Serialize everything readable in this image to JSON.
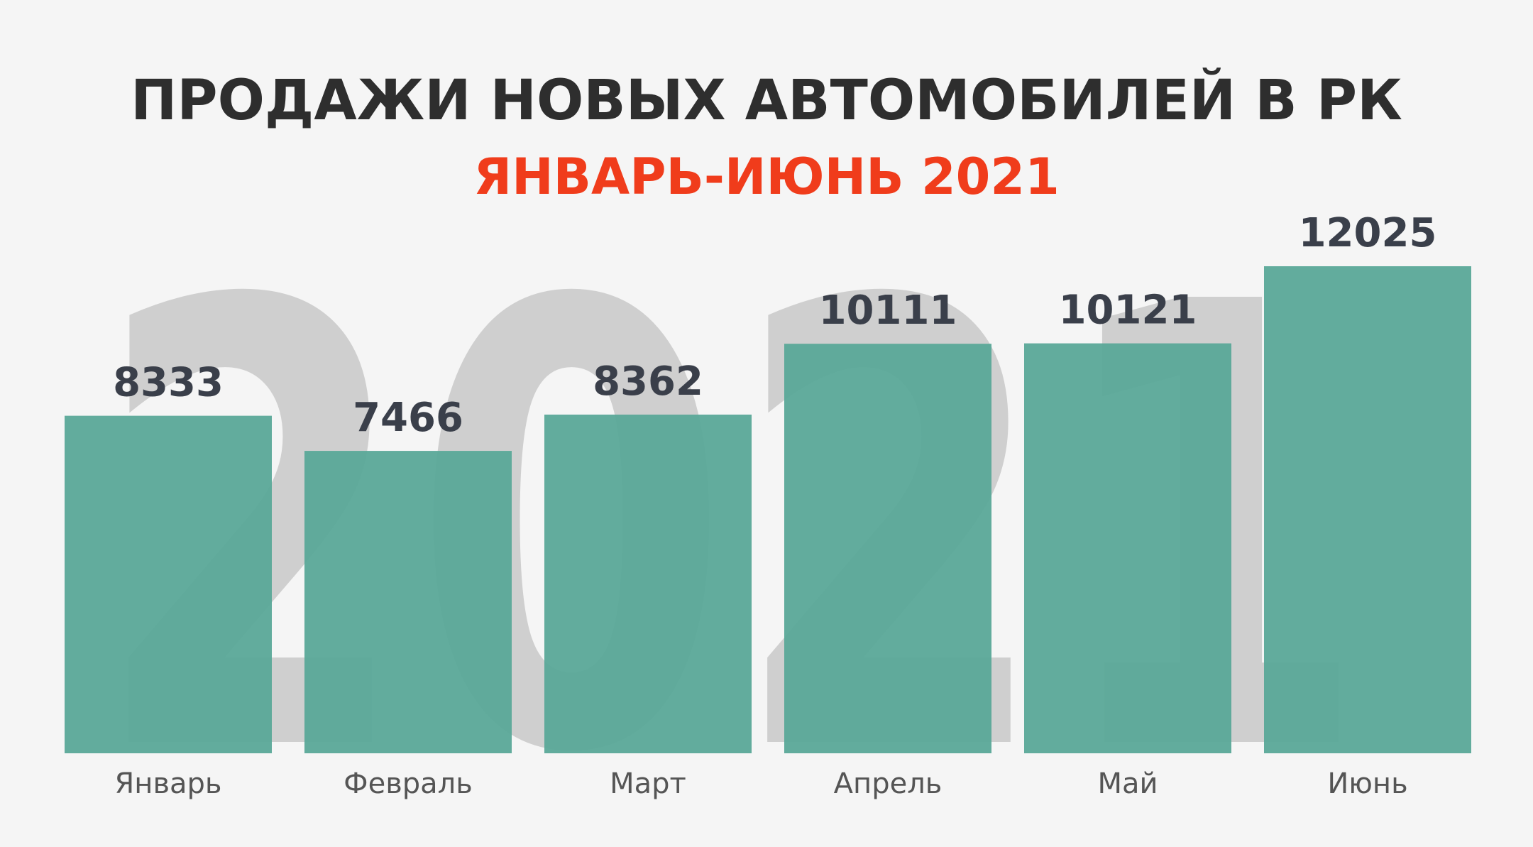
{
  "chart_data": {
    "type": "bar",
    "title": "ПРОДАЖИ НОВЫХ АВТОМОБИЛЕЙ В РК",
    "subtitle": "ЯНВАРЬ-ИЮНЬ 2021",
    "watermark": "2021",
    "categories": [
      "Январь",
      "Февраль",
      "Март",
      "Апрель",
      "Май",
      "Июнь"
    ],
    "values": [
      8333,
      7466,
      8362,
      10111,
      10121,
      12025
    ],
    "color": "#5aa898"
  }
}
